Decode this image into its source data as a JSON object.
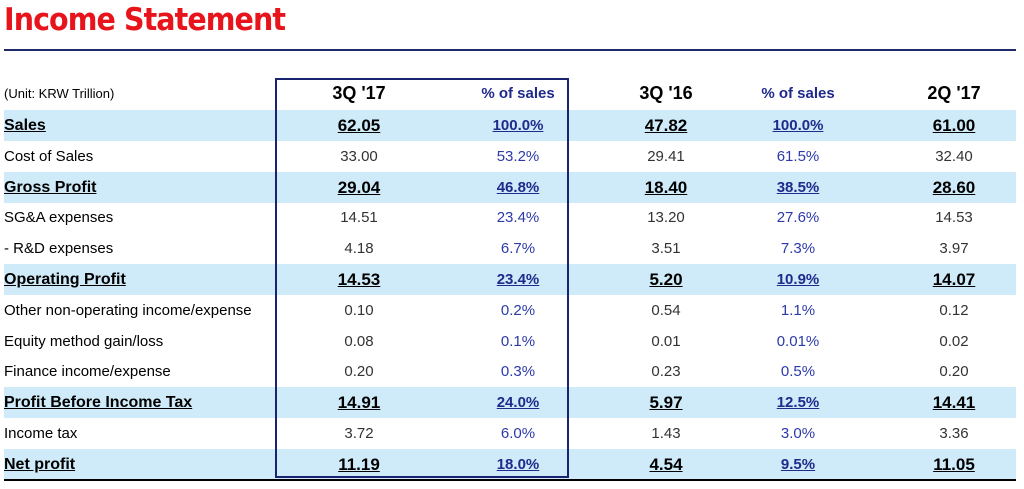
{
  "title": "Income Statement",
  "unit_note": "(Unit: KRW Trillion)",
  "columns": [
    "3Q '17",
    "% of sales",
    "3Q '16",
    "% of sales",
    "2Q '17"
  ],
  "rows": [
    {
      "label": "Sales",
      "values": [
        "62.05",
        "100.0%",
        "47.82",
        "100.0%",
        "61.00"
      ],
      "highlight": true
    },
    {
      "label": "Cost of Sales",
      "values": [
        "33.00",
        "53.2%",
        "29.41",
        "61.5%",
        "32.40"
      ],
      "highlight": false
    },
    {
      "label": "Gross Profit",
      "values": [
        "29.04",
        "46.8%",
        "18.40",
        "38.5%",
        "28.60"
      ],
      "highlight": true
    },
    {
      "label": "SG&A expenses",
      "values": [
        "14.51",
        "23.4%",
        "13.20",
        "27.6%",
        "14.53"
      ],
      "highlight": false
    },
    {
      "label": " - R&D expenses",
      "values": [
        "4.18",
        "6.7%",
        "3.51",
        "7.3%",
        "3.97"
      ],
      "highlight": false
    },
    {
      "label": "Operating Profit",
      "values": [
        "14.53",
        "23.4%",
        "5.20",
        "10.9%",
        "14.07"
      ],
      "highlight": true
    },
    {
      "label": "Other non-operating income/expense",
      "values": [
        "0.10",
        "0.2%",
        "0.54",
        "1.1%",
        "0.12"
      ],
      "highlight": false
    },
    {
      "label": "Equity method gain/loss",
      "values": [
        "0.08",
        "0.1%",
        "0.01",
        "0.01%",
        "0.02"
      ],
      "highlight": false
    },
    {
      "label": "Finance income/expense",
      "values": [
        "0.20",
        "0.3%",
        "0.23",
        "0.5%",
        "0.20"
      ],
      "highlight": false
    },
    {
      "label": "Profit Before Income Tax",
      "values": [
        "14.91",
        "24.0%",
        "5.97",
        "12.5%",
        "14.41"
      ],
      "highlight": true
    },
    {
      "label": "Income tax",
      "values": [
        "3.72",
        "6.0%",
        "1.43",
        "3.0%",
        "3.36"
      ],
      "highlight": false
    },
    {
      "label": "Net profit",
      "values": [
        "11.19",
        "18.0%",
        "4.54",
        "9.5%",
        "11.05"
      ],
      "highlight": true
    }
  ],
  "colors": {
    "title": "#e8141b",
    "highlight_row": "#cfeaf8",
    "percent_text": "#2b3aa8",
    "box_border": "#1a2370"
  }
}
